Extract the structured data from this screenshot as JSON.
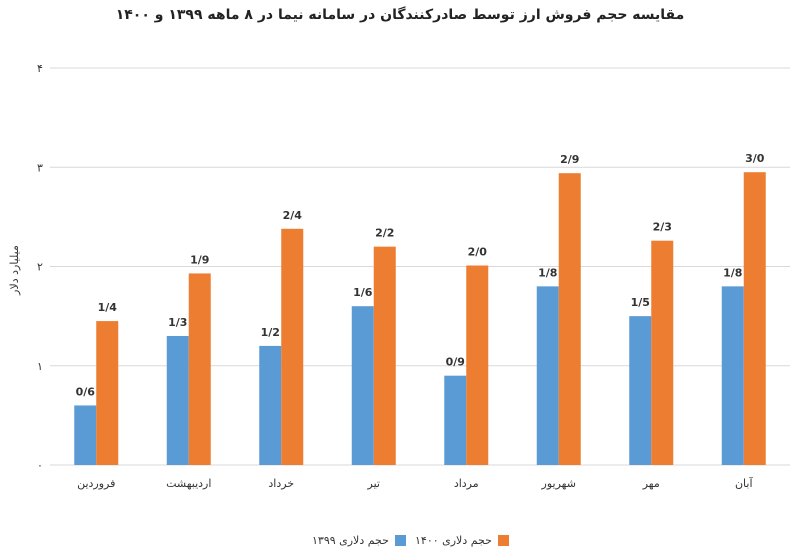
{
  "chart_data": {
    "type": "bar",
    "title": "مقایسه حجم فروش ارز توسط صادرکنندگان در سامانه نیما در ۸ ماهه ۱۳۹۹ و ۱۴۰۰",
    "ylabel": "میلیارد دلار",
    "xlabel": "",
    "ylim": [
      0,
      4
    ],
    "yticks": [
      {
        "value": 0,
        "label": "۰"
      },
      {
        "value": 1,
        "label": "۱"
      },
      {
        "value": 2,
        "label": "۲"
      },
      {
        "value": 3,
        "label": "۳"
      },
      {
        "value": 4,
        "label": "۴"
      }
    ],
    "grid": true,
    "legend_position": "bottom-right",
    "categories": [
      "فروردین",
      "اردیبهشت",
      "خرداد",
      "تیر",
      "مرداد",
      "شهریور",
      "مهر",
      "آبان"
    ],
    "series": [
      {
        "name": "حجم دلاری ۱۳۹۹",
        "color": "#5b9bd5",
        "values": [
          0.6,
          1.3,
          1.2,
          1.6,
          0.9,
          1.8,
          1.5,
          1.8
        ],
        "value_labels": [
          "0/6",
          "1/3",
          "1/2",
          "1/6",
          "0/9",
          "1/8",
          "1/5",
          "1/8"
        ]
      },
      {
        "name": "حجم دلاری ۱۴۰۰",
        "color": "#ed7d31",
        "values": [
          1.45,
          1.93,
          2.38,
          2.2,
          2.01,
          2.94,
          2.26,
          2.95
        ],
        "value_labels": [
          "1/4",
          "1/9",
          "2/4",
          "2/2",
          "2/0",
          "2/9",
          "2/3",
          "3/0"
        ]
      }
    ]
  }
}
